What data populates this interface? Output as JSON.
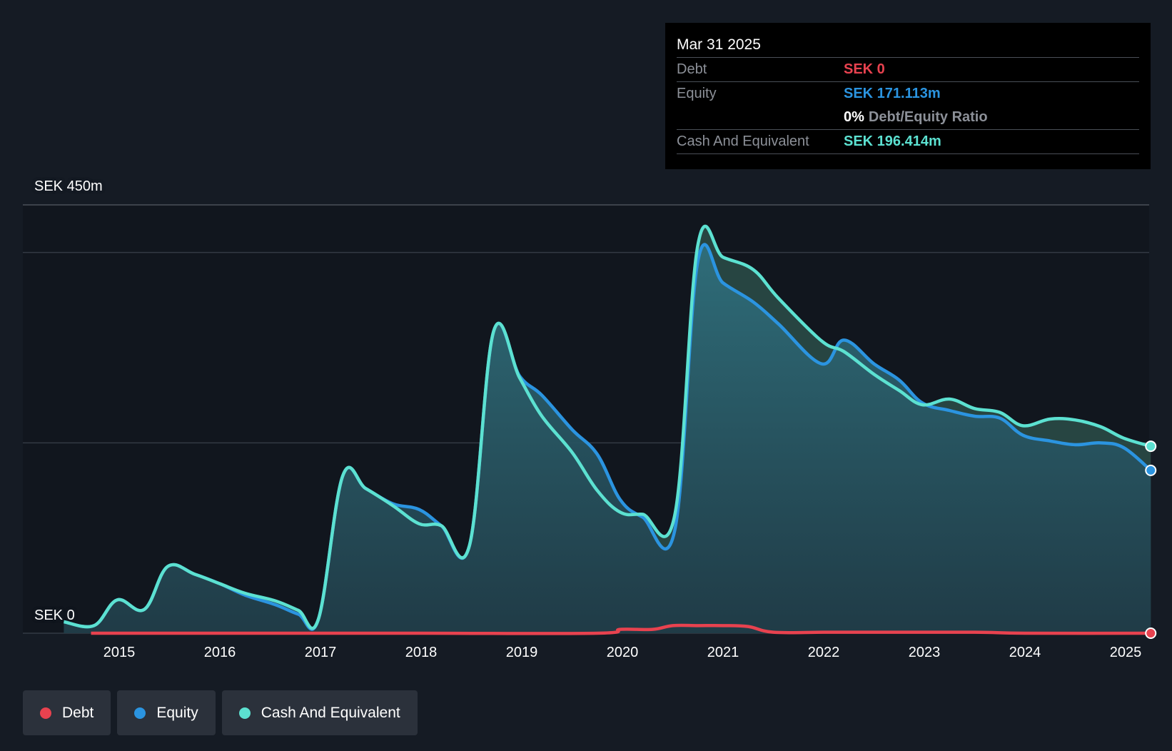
{
  "colors": {
    "background": "#151b24",
    "debt": "#e8424f",
    "equity": "#2b94e0",
    "cash": "#5ce1d1",
    "grid": "#333a44"
  },
  "y_axis": {
    "top_label": "SEK 450m",
    "bottom_label": "SEK 0"
  },
  "tooltip": {
    "date": "Mar 31 2025",
    "debt_label": "Debt",
    "debt_value": "SEK 0",
    "equity_label": "Equity",
    "equity_value": "SEK 171.113m",
    "ratio_value": "0%",
    "ratio_label": "Debt/Equity Ratio",
    "cash_label": "Cash And Equivalent",
    "cash_value": "SEK 196.414m"
  },
  "legend": [
    {
      "label": "Debt",
      "color": "#e8424f"
    },
    {
      "label": "Equity",
      "color": "#2b94e0"
    },
    {
      "label": "Cash And Equivalent",
      "color": "#5ce1d1"
    }
  ],
  "chart_data": {
    "type": "area",
    "x_tick_labels": [
      "2015",
      "2016",
      "2017",
      "2018",
      "2019",
      "2020",
      "2021",
      "2022",
      "2023",
      "2024",
      "2025"
    ],
    "ylim": [
      0,
      450
    ],
    "gridlines": [
      0,
      200,
      400,
      450
    ],
    "grid": true,
    "legend_position": "bottom-left",
    "series": [
      {
        "name": "Cash And Equivalent",
        "color": "#5ce1d1",
        "points": [
          [
            2014.45,
            12
          ],
          [
            2014.75,
            8
          ],
          [
            2014.98,
            35
          ],
          [
            2015.25,
            25
          ],
          [
            2015.48,
            70
          ],
          [
            2015.75,
            62
          ],
          [
            2016.0,
            52
          ],
          [
            2016.25,
            42
          ],
          [
            2016.55,
            34
          ],
          [
            2016.78,
            24
          ],
          [
            2016.98,
            15
          ],
          [
            2017.22,
            165
          ],
          [
            2017.45,
            152
          ],
          [
            2017.72,
            134
          ],
          [
            2017.98,
            115
          ],
          [
            2018.2,
            113
          ],
          [
            2018.48,
            92
          ],
          [
            2018.72,
            317
          ],
          [
            2018.98,
            268
          ],
          [
            2019.2,
            228
          ],
          [
            2019.5,
            190
          ],
          [
            2019.75,
            150
          ],
          [
            2019.98,
            127
          ],
          [
            2020.2,
            125
          ],
          [
            2020.52,
            124
          ],
          [
            2020.75,
            408
          ],
          [
            2021.0,
            395
          ],
          [
            2021.3,
            382
          ],
          [
            2021.55,
            352
          ],
          [
            2021.98,
            307
          ],
          [
            2022.2,
            296
          ],
          [
            2022.5,
            272
          ],
          [
            2022.75,
            255
          ],
          [
            2022.98,
            240
          ],
          [
            2023.25,
            246
          ],
          [
            2023.5,
            236
          ],
          [
            2023.75,
            232
          ],
          [
            2023.98,
            218
          ],
          [
            2024.25,
            225
          ],
          [
            2024.5,
            224
          ],
          [
            2024.75,
            217
          ],
          [
            2024.98,
            205
          ],
          [
            2025.25,
            196.4
          ]
        ]
      },
      {
        "name": "Equity",
        "color": "#2b94e0",
        "points": [
          [
            2014.45,
            12
          ],
          [
            2014.75,
            8
          ],
          [
            2014.98,
            35
          ],
          [
            2015.25,
            25
          ],
          [
            2015.48,
            70
          ],
          [
            2015.75,
            62
          ],
          [
            2016.0,
            52
          ],
          [
            2016.25,
            40
          ],
          [
            2016.55,
            30
          ],
          [
            2016.78,
            20
          ],
          [
            2016.98,
            15
          ],
          [
            2017.22,
            165
          ],
          [
            2017.45,
            152
          ],
          [
            2017.72,
            136
          ],
          [
            2017.98,
            130
          ],
          [
            2018.2,
            113
          ],
          [
            2018.48,
            92
          ],
          [
            2018.72,
            317
          ],
          [
            2018.98,
            270
          ],
          [
            2019.2,
            250
          ],
          [
            2019.5,
            214
          ],
          [
            2019.75,
            188
          ],
          [
            2019.98,
            140
          ],
          [
            2020.2,
            122
          ],
          [
            2020.52,
            108
          ],
          [
            2020.75,
            391
          ],
          [
            2021.0,
            368
          ],
          [
            2021.3,
            348
          ],
          [
            2021.55,
            325
          ],
          [
            2021.98,
            283
          ],
          [
            2022.2,
            308
          ],
          [
            2022.5,
            283
          ],
          [
            2022.75,
            266
          ],
          [
            2022.98,
            242
          ],
          [
            2023.25,
            234
          ],
          [
            2023.5,
            228
          ],
          [
            2023.75,
            226
          ],
          [
            2023.98,
            208
          ],
          [
            2024.25,
            202
          ],
          [
            2024.5,
            198
          ],
          [
            2024.75,
            200
          ],
          [
            2024.98,
            195
          ],
          [
            2025.25,
            171.1
          ]
        ]
      },
      {
        "name": "Debt",
        "color": "#e8424f",
        "points": [
          [
            2014.72,
            0
          ],
          [
            2016.0,
            0
          ],
          [
            2018.0,
            0
          ],
          [
            2019.75,
            0
          ],
          [
            2019.98,
            4
          ],
          [
            2020.3,
            4
          ],
          [
            2020.5,
            8
          ],
          [
            2020.75,
            8
          ],
          [
            2021.0,
            8
          ],
          [
            2021.25,
            7
          ],
          [
            2021.5,
            1
          ],
          [
            2022.0,
            1
          ],
          [
            2022.5,
            1
          ],
          [
            2023.5,
            1
          ],
          [
            2024.0,
            0
          ],
          [
            2025.25,
            0
          ]
        ]
      }
    ]
  }
}
